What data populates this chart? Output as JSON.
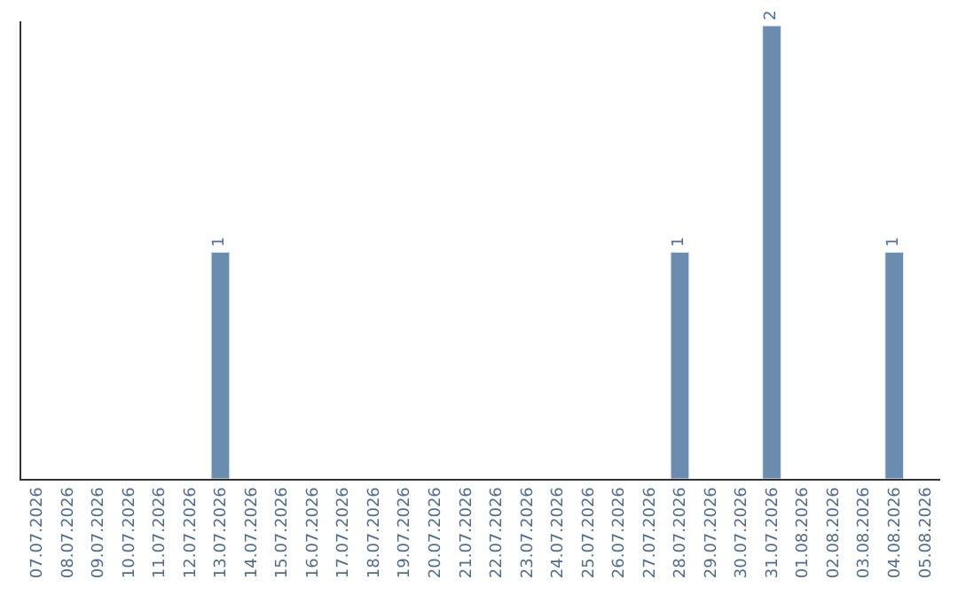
{
  "chart_data": {
    "type": "bar",
    "categories": [
      "07.07.2026",
      "08.07.2026",
      "09.07.2026",
      "10.07.2026",
      "11.07.2026",
      "12.07.2026",
      "13.07.2026",
      "14.07.2026",
      "15.07.2026",
      "16.07.2026",
      "17.07.2026",
      "18.07.2026",
      "19.07.2026",
      "20.07.2026",
      "21.07.2026",
      "22.07.2026",
      "23.07.2026",
      "24.07.2026",
      "25.07.2026",
      "26.07.2026",
      "27.07.2026",
      "28.07.2026",
      "29.07.2026",
      "30.07.2026",
      "31.07.2026",
      "01.08.2026",
      "02.08.2026",
      "03.08.2026",
      "04.08.2026",
      "05.08.2026"
    ],
    "values": [
      null,
      null,
      null,
      null,
      null,
      null,
      1,
      null,
      null,
      null,
      null,
      null,
      null,
      null,
      null,
      null,
      null,
      null,
      null,
      null,
      null,
      1,
      null,
      null,
      2,
      null,
      null,
      null,
      1,
      null
    ],
    "value_labels": [
      null,
      null,
      null,
      null,
      null,
      null,
      "1",
      null,
      null,
      null,
      null,
      null,
      null,
      null,
      null,
      null,
      null,
      null,
      null,
      null,
      null,
      "1",
      null,
      null,
      "2",
      null,
      null,
      null,
      "1",
      null
    ],
    "color": "#6a8caf",
    "legend": false
  }
}
